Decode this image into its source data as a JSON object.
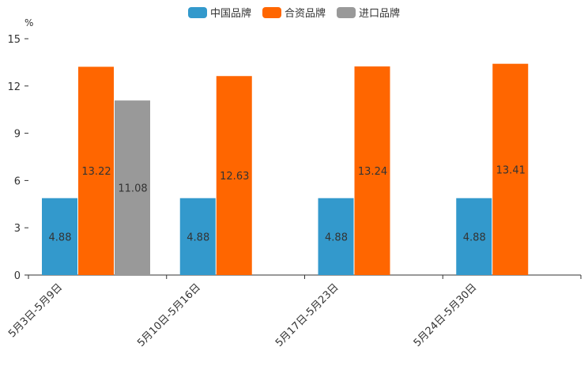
{
  "chart_data": {
    "type": "bar",
    "unit": "%",
    "categories": [
      "5月3日-5月9日",
      "5月10日-5月16日",
      "5月17日-5月23日",
      "5月24日-5月30日"
    ],
    "series": [
      {
        "name": "中国品牌",
        "color": "#3399cc",
        "values": [
          4.88,
          4.88,
          4.88,
          4.88
        ]
      },
      {
        "name": "合资品牌",
        "color": "#ff6600",
        "values": [
          13.22,
          12.63,
          13.24,
          13.41
        ]
      },
      {
        "name": "进口品牌",
        "color": "#999999",
        "values": [
          11.08,
          null,
          null,
          null
        ]
      }
    ],
    "ylim": [
      0,
      15
    ],
    "yticks": [
      0,
      3,
      6,
      9,
      12,
      15
    ],
    "legend_position": "top-center"
  }
}
